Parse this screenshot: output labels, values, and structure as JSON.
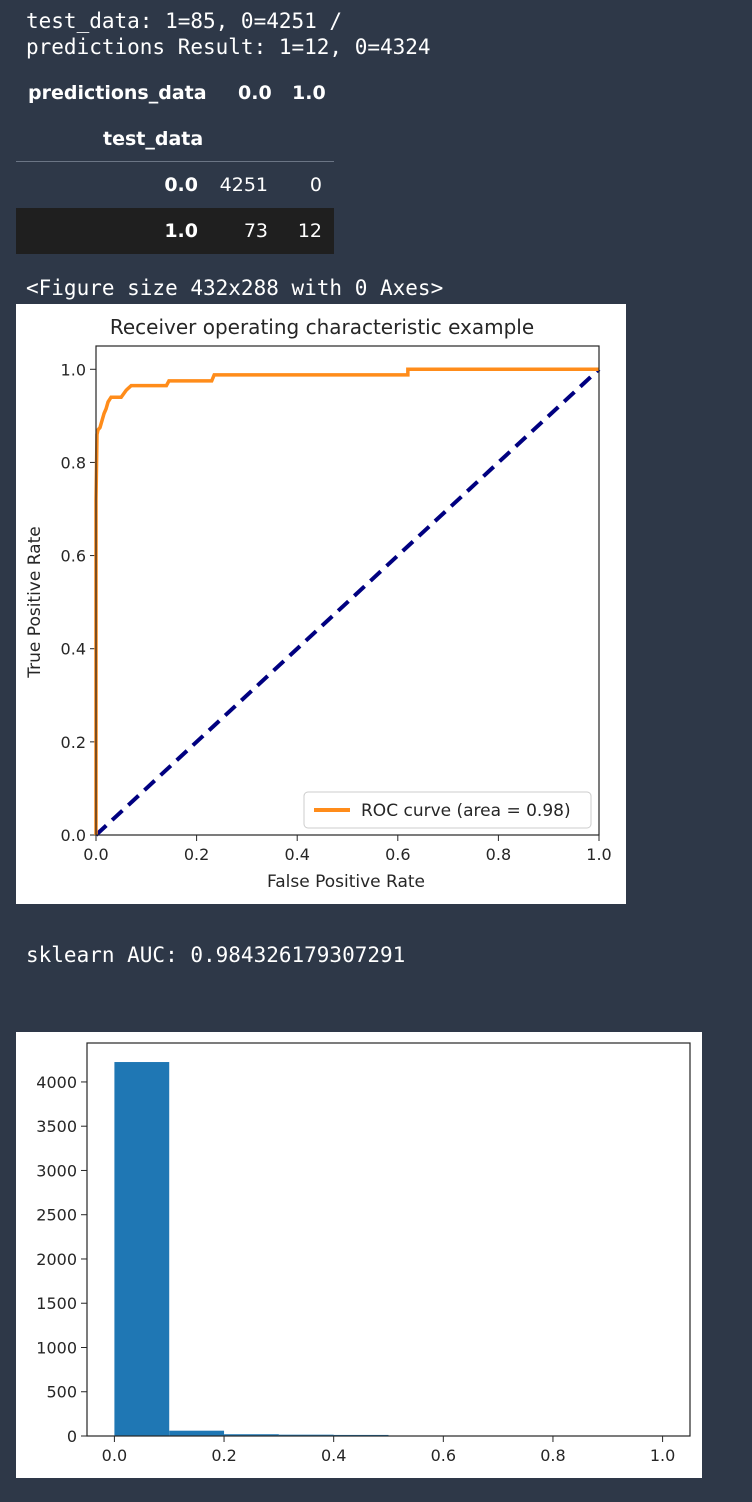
{
  "output": {
    "stream_line1": "test_data: 1=85, 0=4251 /",
    "stream_line2": "predictions Result: 1=12, 0=4324",
    "figure_size_text": "<Figure size 432x288 with 0 Axes>",
    "auc_text": "sklearn AUC: 0.984326179307291"
  },
  "crosstab": {
    "columns_name": "predictions_data",
    "col_labels": [
      "0.0",
      "1.0"
    ],
    "index_name": "test_data",
    "rows": [
      {
        "label": "0.0",
        "values": [
          "4251",
          "0"
        ]
      },
      {
        "label": "1.0",
        "values": [
          "73",
          "12"
        ]
      }
    ]
  },
  "colors": {
    "background": "#2e3848",
    "roc_curve": "#ff8c1a",
    "diagonal": "#000080",
    "hist_bar": "#1f77b4",
    "row_highlight": "#1f1f1f"
  },
  "chart_data": [
    {
      "type": "line",
      "title": "Receiver operating characteristic example",
      "xlabel": "False Positive Rate",
      "ylabel": "True Positive Rate",
      "xlim": [
        0.0,
        1.0
      ],
      "ylim": [
        0.0,
        1.05
      ],
      "xticks": [
        "0.0",
        "0.2",
        "0.4",
        "0.6",
        "0.8",
        "1.0"
      ],
      "yticks": [
        "0.0",
        "0.2",
        "0.4",
        "0.6",
        "0.8",
        "1.0"
      ],
      "legend": {
        "position": "lower-right",
        "label": "ROC curve (area = 0.98)"
      },
      "series": [
        {
          "name": "ROC curve (area = 0.98)",
          "x": [
            0.0,
            0.0,
            0.002,
            0.004,
            0.008,
            0.012,
            0.016,
            0.02,
            0.024,
            0.03,
            0.036,
            0.05,
            0.06,
            0.07,
            0.075,
            0.14,
            0.145,
            0.23,
            0.235,
            0.62,
            0.62,
            1.0
          ],
          "y": [
            0.0,
            0.72,
            0.86,
            0.87,
            0.875,
            0.89,
            0.905,
            0.915,
            0.93,
            0.94,
            0.94,
            0.94,
            0.955,
            0.965,
            0.965,
            0.965,
            0.975,
            0.975,
            0.988,
            0.988,
            1.0,
            1.0
          ]
        },
        {
          "name": "",
          "x": [
            0.0,
            1.0
          ],
          "y": [
            0.0,
            1.0
          ]
        }
      ]
    },
    {
      "type": "bar",
      "title": "",
      "xlabel": "",
      "ylabel": "",
      "xlim": [
        -0.05,
        1.05
      ],
      "ylim": [
        0,
        4440
      ],
      "xticks": [
        "0.0",
        "0.2",
        "0.4",
        "0.6",
        "0.8",
        "1.0"
      ],
      "yticks": [
        "0",
        "500",
        "1000",
        "1500",
        "2000",
        "2500",
        "3000",
        "3500",
        "4000"
      ],
      "bins": [
        [
          0.0,
          0.1
        ],
        [
          0.1,
          0.2
        ],
        [
          0.2,
          0.3
        ],
        [
          0.3,
          0.4
        ],
        [
          0.4,
          0.5
        ],
        [
          0.5,
          0.6
        ],
        [
          0.6,
          0.7
        ],
        [
          0.7,
          0.8
        ],
        [
          0.8,
          0.9
        ],
        [
          0.9,
          1.0
        ]
      ],
      "values": [
        4225,
        60,
        20,
        15,
        12,
        0,
        0,
        0,
        0,
        4
      ]
    }
  ]
}
